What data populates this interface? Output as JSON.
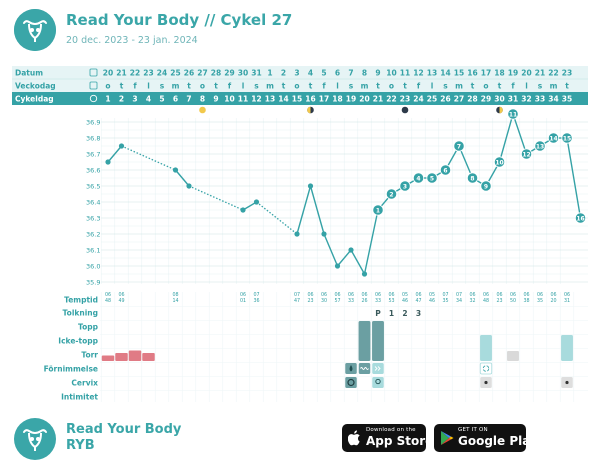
{
  "header": {
    "title": "Read Your Body // Cykel 27",
    "subtitle": "20 dec. 2023 - 23 jan. 2024",
    "logo_icon": "uterus-logo-icon"
  },
  "colors": {
    "teal": "#35a2a6",
    "teal_light": "#e6f4f5",
    "bleeding": "#e07b85",
    "dark_bar": "#6b9fa2",
    "light_bar": "#a8dbdd",
    "grey_bar": "#d9d9d9"
  },
  "rows": {
    "date_label": "Datum",
    "weekday_label": "Veckodag",
    "cycleday_label": "Cykeldag",
    "dates": [
      "20",
      "21",
      "22",
      "23",
      "24",
      "25",
      "26",
      "27",
      "28",
      "29",
      "30",
      "31",
      "1",
      "2",
      "3",
      "4",
      "5",
      "6",
      "7",
      "8",
      "9",
      "10",
      "11",
      "12",
      "13",
      "14",
      "15",
      "16",
      "17",
      "18",
      "19",
      "20",
      "21",
      "22",
      "23"
    ],
    "weekdays": [
      "o",
      "t",
      "f",
      "l",
      "s",
      "m",
      "t",
      "o",
      "t",
      "f",
      "l",
      "s",
      "m",
      "t",
      "o",
      "t",
      "f",
      "l",
      "s",
      "m",
      "t",
      "o",
      "t",
      "f",
      "l",
      "s",
      "m",
      "t",
      "o",
      "t",
      "f",
      "l",
      "s",
      "m",
      "t"
    ],
    "cycledays": [
      "1",
      "2",
      "3",
      "4",
      "5",
      "6",
      "7",
      "8",
      "9",
      "10",
      "11",
      "12",
      "13",
      "14",
      "15",
      "16",
      "17",
      "18",
      "19",
      "20",
      "21",
      "22",
      "23",
      "24",
      "25",
      "26",
      "27",
      "28",
      "29",
      "30",
      "31",
      "32",
      "33",
      "34",
      "35"
    ],
    "moon_icons": [
      {
        "day": 8,
        "type": "full-moon-icon"
      },
      {
        "day": 16,
        "type": "first-quarter-moon-icon"
      },
      {
        "day": 23,
        "type": "new-moon-icon"
      },
      {
        "day": 30,
        "type": "last-quarter-moon-icon"
      }
    ]
  },
  "chart_data": {
    "type": "line",
    "title": "",
    "xlabel": "Cykeldag",
    "ylabel": "",
    "ylim": [
      35.9,
      36.9
    ],
    "yticks": [
      "36.9",
      "36.8",
      "36.7",
      "36.6",
      "36.5",
      "36.4",
      "36.3",
      "36.2",
      "36.1",
      "36.0",
      "35.9"
    ],
    "points": [
      {
        "day": 1,
        "temp": 36.65
      },
      {
        "day": 2,
        "temp": 36.75
      },
      {
        "day": 6,
        "temp": 36.6
      },
      {
        "day": 7,
        "temp": 36.5
      },
      {
        "day": 11,
        "temp": 36.35
      },
      {
        "day": 12,
        "temp": 36.4
      },
      {
        "day": 15,
        "temp": 36.2
      },
      {
        "day": 16,
        "temp": 36.5
      },
      {
        "day": 17,
        "temp": 36.2
      },
      {
        "day": 18,
        "temp": 36.0
      },
      {
        "day": 19,
        "temp": 36.1
      },
      {
        "day": 20,
        "temp": 35.95
      },
      {
        "day": 21,
        "temp": 36.35,
        "label": "1"
      },
      {
        "day": 22,
        "temp": 36.45,
        "label": "2"
      },
      {
        "day": 23,
        "temp": 36.5,
        "label": "3"
      },
      {
        "day": 24,
        "temp": 36.55,
        "label": "4"
      },
      {
        "day": 25,
        "temp": 36.55,
        "label": "5"
      },
      {
        "day": 26,
        "temp": 36.6,
        "label": "6"
      },
      {
        "day": 27,
        "temp": 36.75,
        "label": "7"
      },
      {
        "day": 28,
        "temp": 36.55,
        "label": "8"
      },
      {
        "day": 29,
        "temp": 36.5,
        "label": "9"
      },
      {
        "day": 30,
        "temp": 36.65,
        "label": "10"
      },
      {
        "day": 31,
        "temp": 36.95,
        "label": "11"
      },
      {
        "day": 32,
        "temp": 36.7,
        "label": "12"
      },
      {
        "day": 33,
        "temp": 36.75,
        "label": "13"
      },
      {
        "day": 34,
        "temp": 36.8,
        "label": "14"
      },
      {
        "day": 35,
        "temp": 36.8,
        "label": "15"
      },
      {
        "day": 36,
        "temp": 36.3,
        "label": "16"
      }
    ],
    "dotted_segments": [
      [
        2,
        6
      ],
      [
        7,
        11
      ],
      [
        12,
        15
      ]
    ]
  },
  "temptid": {
    "label": "Temptid",
    "entries": [
      {
        "day": 1,
        "time": "06 48"
      },
      {
        "day": 2,
        "time": "06 49"
      },
      {
        "day": 6,
        "time": "08 14"
      },
      {
        "day": 11,
        "time": "06 01"
      },
      {
        "day": 12,
        "time": "07 36"
      },
      {
        "day": 15,
        "time": "07 47"
      },
      {
        "day": 16,
        "time": "06 23"
      },
      {
        "day": 17,
        "time": "06 30"
      },
      {
        "day": 18,
        "time": "06 57"
      },
      {
        "day": 19,
        "time": "06 33"
      },
      {
        "day": 20,
        "time": "06 26"
      },
      {
        "day": 21,
        "time": "06 33"
      },
      {
        "day": 22,
        "time": "06 53"
      },
      {
        "day": 23,
        "time": "05 46"
      },
      {
        "day": 24,
        "time": "06 47"
      },
      {
        "day": 25,
        "time": "05 46"
      },
      {
        "day": 26,
        "time": "07 35"
      },
      {
        "day": 27,
        "time": "07 34"
      },
      {
        "day": 28,
        "time": "06 32"
      },
      {
        "day": 29,
        "time": "06 48"
      },
      {
        "day": 30,
        "time": "06 23"
      },
      {
        "day": 31,
        "time": "06 50"
      },
      {
        "day": 32,
        "time": "06 38"
      },
      {
        "day": 33,
        "time": "06 35"
      },
      {
        "day": 34,
        "time": "06 20"
      },
      {
        "day": 35,
        "time": "06 31"
      }
    ]
  },
  "tolkning": {
    "label": "Tolkning",
    "marks": [
      {
        "day": 21,
        "text": "P"
      },
      {
        "day": 22,
        "text": "1"
      },
      {
        "day": 23,
        "text": "2"
      },
      {
        "day": 24,
        "text": "3"
      }
    ]
  },
  "mucus": {
    "top_label": "Topp",
    "nontop_label": "Icke-topp",
    "dry_label": "Torr",
    "bleeding": [
      {
        "day": 1,
        "level": 1
      },
      {
        "day": 2,
        "level": 2
      },
      {
        "day": 3,
        "level": 3
      },
      {
        "day": 4,
        "level": 2
      }
    ],
    "dark_bars": [
      {
        "day": 20,
        "from": "topp",
        "to": "torr"
      },
      {
        "day": 21,
        "from": "topp",
        "to": "torr"
      }
    ],
    "light_bars": [
      {
        "day": 29,
        "from": "icke",
        "to": "torr"
      },
      {
        "day": 35,
        "from": "icke",
        "to": "torr"
      }
    ],
    "grey_bars": [
      {
        "day": 31
      }
    ]
  },
  "fornimmelse": {
    "label": "Förnimmelse",
    "icons": [
      {
        "day": 19,
        "icon": "drop-icon",
        "style": "dark"
      },
      {
        "day": 20,
        "icon": "wave-icon",
        "style": "dark"
      },
      {
        "day": 21,
        "icon": "chevrons-icon",
        "style": "light"
      },
      {
        "day": 29,
        "icon": "recycle-icon",
        "style": "outline"
      }
    ]
  },
  "cervix": {
    "label": "Cervix",
    "icons": [
      {
        "day": 19,
        "icon": "cervix-ring-icon",
        "style": "dark"
      },
      {
        "day": 21,
        "icon": "cervix-dot-icon",
        "style": "light"
      },
      {
        "day": 29,
        "icon": "cervix-small-dot-icon",
        "style": "grey"
      },
      {
        "day": 35,
        "icon": "cervix-small-dot-icon",
        "style": "grey"
      }
    ]
  },
  "intimitet": {
    "label": "Intimitet"
  },
  "footer": {
    "brand": "Read Your Body",
    "brand_sub": "RYB",
    "appstore_small": "Download on the",
    "appstore_big": "App Store",
    "googleplay_small": "GET IT ON",
    "googleplay_big": "Google Play"
  }
}
